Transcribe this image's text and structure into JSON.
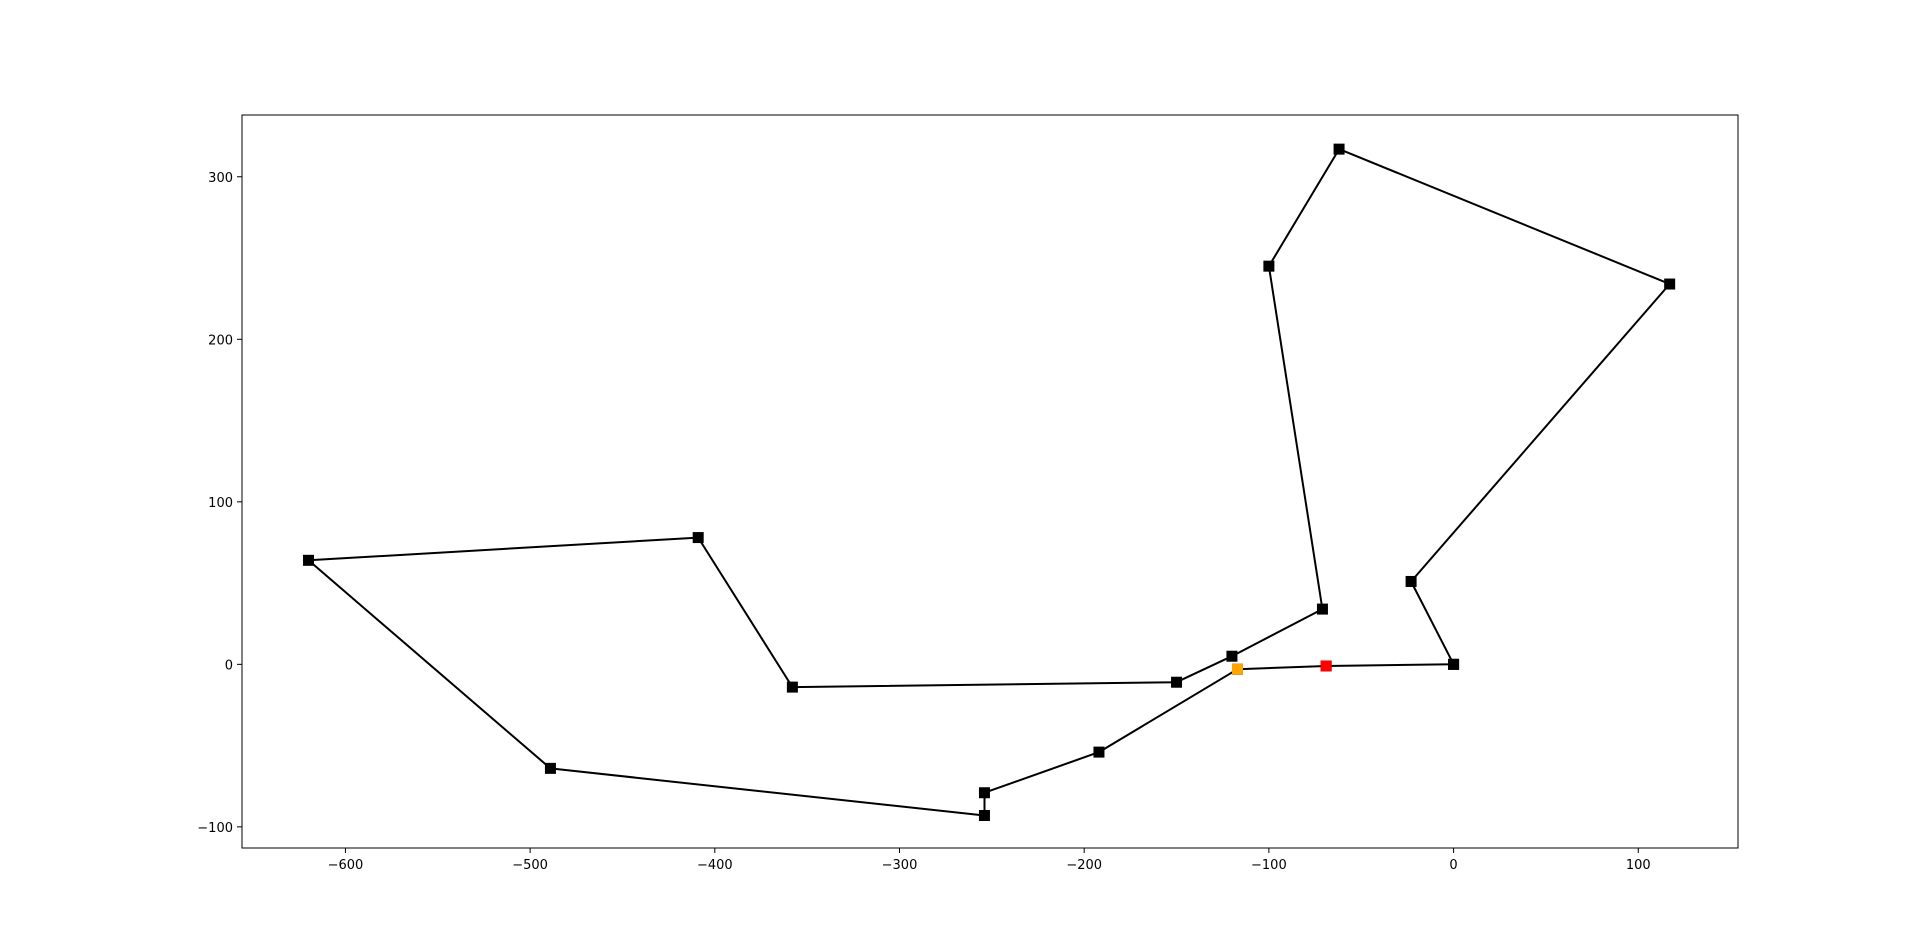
{
  "chart_data": {
    "type": "line",
    "title": "",
    "xlabel": "",
    "ylabel": "",
    "xlim": [
      -656,
      154
    ],
    "ylim": [
      -113,
      338
    ],
    "x_ticks": [
      -600,
      -500,
      -400,
      -300,
      -200,
      -100,
      0,
      100
    ],
    "x_tick_labels": [
      "−600",
      "−500",
      "−400",
      "−300",
      "−200",
      "−100",
      "0",
      "100"
    ],
    "y_ticks": [
      -100,
      0,
      100,
      200,
      300
    ],
    "y_tick_labels": [
      "−100",
      "0",
      "100",
      "200",
      "300"
    ],
    "grid": false,
    "line_color": "#000000",
    "series": [
      {
        "marker": "square",
        "color": "#000000",
        "points": [
          {
            "x": 0,
            "y": 0
          },
          {
            "x": -23,
            "y": 51
          },
          {
            "x": 117,
            "y": 234
          },
          {
            "x": -62,
            "y": 317
          },
          {
            "x": -100,
            "y": 245
          },
          {
            "x": -71,
            "y": 34
          },
          {
            "x": -120,
            "y": 5
          },
          {
            "x": -150,
            "y": -11
          },
          {
            "x": -358,
            "y": -14
          },
          {
            "x": -409,
            "y": 78
          },
          {
            "x": -620,
            "y": 64
          },
          {
            "x": -489,
            "y": -64
          },
          {
            "x": -254,
            "y": -93
          },
          {
            "x": -254,
            "y": -79
          },
          {
            "x": -192,
            "y": -54
          },
          {
            "x": -117,
            "y": -3
          },
          {
            "x": -69,
            "y": -1
          },
          {
            "x": 0,
            "y": 0
          }
        ]
      }
    ],
    "highlight_points": [
      {
        "x": -117,
        "y": -3,
        "color": "#ffa500"
      },
      {
        "x": -69,
        "y": -1,
        "color": "#ff0000"
      }
    ]
  }
}
